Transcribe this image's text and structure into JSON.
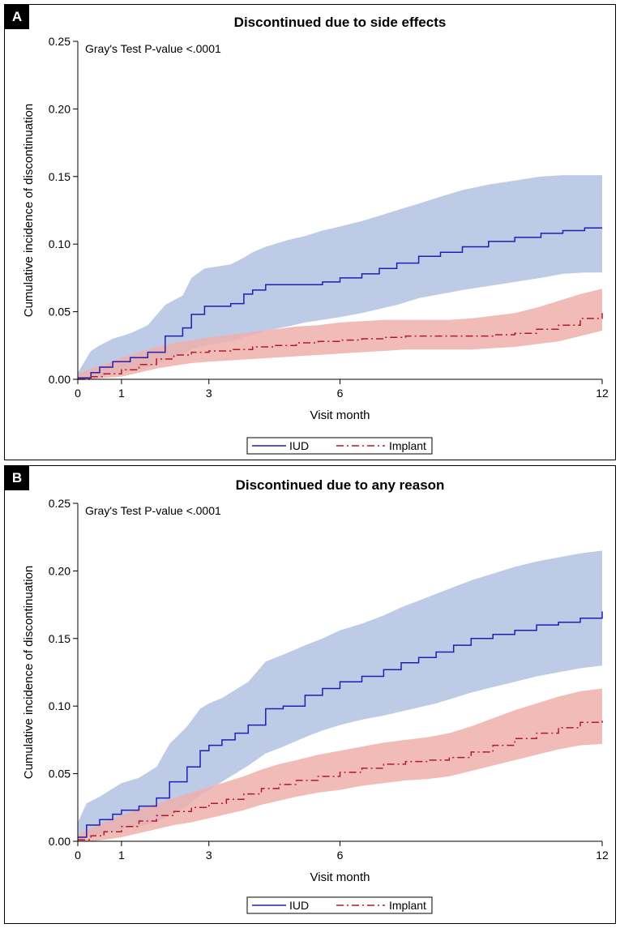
{
  "chart_data": [
    {
      "panel_letter": "A",
      "type": "line",
      "title": "Discontinued due to side effects",
      "xlabel": "Visit month",
      "ylabel": "Cumulative incidence of discontinuation",
      "annotation": "Gray's Test P-value <.0001",
      "xlim": [
        0,
        12
      ],
      "ylim": [
        0,
        0.25
      ],
      "xticks": [
        0,
        1,
        3,
        6,
        12
      ],
      "yticks": [
        0.0,
        0.05,
        0.1,
        0.15,
        0.2,
        0.25
      ],
      "ytick_labels": [
        "0.00",
        "0.05",
        "0.10",
        "0.15",
        "0.20",
        "0.25"
      ],
      "legend_position": "bottom-center",
      "series": [
        {
          "name": "IUD",
          "color": "#1f1fb4",
          "band_color": "#b3c2e3",
          "style": "solid",
          "x": [
            0,
            0.3,
            0.5,
            0.8,
            1.2,
            1.6,
            2.0,
            2.4,
            2.6,
            2.9,
            3.5,
            3.8,
            4.0,
            4.3,
            4.8,
            5.2,
            5.6,
            6.0,
            6.5,
            6.9,
            7.3,
            7.8,
            8.3,
            8.8,
            9.4,
            10.0,
            10.6,
            11.1,
            11.6,
            12.0
          ],
          "y": [
            0.001,
            0.005,
            0.009,
            0.013,
            0.016,
            0.02,
            0.032,
            0.038,
            0.048,
            0.054,
            0.056,
            0.063,
            0.066,
            0.07,
            0.07,
            0.07,
            0.072,
            0.075,
            0.078,
            0.082,
            0.086,
            0.091,
            0.094,
            0.098,
            0.102,
            0.105,
            0.108,
            0.11,
            0.112,
            0.112
          ],
          "lower": [
            0.0,
            0.001,
            0.002,
            0.004,
            0.006,
            0.009,
            0.014,
            0.018,
            0.022,
            0.025,
            0.028,
            0.031,
            0.033,
            0.036,
            0.039,
            0.042,
            0.044,
            0.046,
            0.049,
            0.052,
            0.055,
            0.06,
            0.063,
            0.066,
            0.069,
            0.072,
            0.075,
            0.078,
            0.079,
            0.079
          ],
          "upper": [
            0.005,
            0.021,
            0.025,
            0.03,
            0.034,
            0.04,
            0.055,
            0.062,
            0.075,
            0.082,
            0.085,
            0.09,
            0.094,
            0.098,
            0.103,
            0.106,
            0.11,
            0.113,
            0.117,
            0.121,
            0.125,
            0.13,
            0.135,
            0.14,
            0.144,
            0.147,
            0.15,
            0.151,
            0.151,
            0.151
          ]
        },
        {
          "name": "Implant",
          "color": "#b2182b",
          "band_color": "#eeb0ac",
          "style": "dash",
          "x": [
            0,
            0.3,
            0.6,
            1.0,
            1.4,
            1.8,
            2.2,
            2.6,
            3.0,
            3.5,
            4.0,
            4.5,
            5.0,
            5.5,
            6.0,
            6.5,
            7.0,
            7.5,
            8.0,
            8.5,
            9.0,
            9.5,
            10.0,
            10.5,
            11.0,
            11.5,
            12.0
          ],
          "y": [
            0.0,
            0.002,
            0.004,
            0.007,
            0.011,
            0.015,
            0.018,
            0.02,
            0.021,
            0.022,
            0.024,
            0.025,
            0.027,
            0.028,
            0.029,
            0.03,
            0.031,
            0.032,
            0.032,
            0.032,
            0.032,
            0.033,
            0.034,
            0.037,
            0.04,
            0.045,
            0.049
          ],
          "lower": [
            0.0,
            0.0,
            0.001,
            0.002,
            0.005,
            0.008,
            0.01,
            0.012,
            0.013,
            0.014,
            0.015,
            0.016,
            0.017,
            0.018,
            0.019,
            0.02,
            0.021,
            0.022,
            0.022,
            0.022,
            0.022,
            0.023,
            0.024,
            0.026,
            0.028,
            0.032,
            0.036
          ],
          "upper": [
            0.004,
            0.008,
            0.011,
            0.016,
            0.02,
            0.024,
            0.027,
            0.029,
            0.031,
            0.033,
            0.035,
            0.037,
            0.039,
            0.04,
            0.042,
            0.043,
            0.044,
            0.044,
            0.044,
            0.044,
            0.045,
            0.047,
            0.049,
            0.053,
            0.058,
            0.063,
            0.067
          ]
        }
      ]
    },
    {
      "panel_letter": "B",
      "type": "line",
      "title": "Discontinued due to any reason",
      "xlabel": "Visit month",
      "ylabel": "Cumulative incidence of discontinuation",
      "annotation": "Gray's Test P-value <.0001",
      "xlim": [
        0,
        12
      ],
      "ylim": [
        0,
        0.25
      ],
      "xticks": [
        0,
        1,
        3,
        6,
        12
      ],
      "yticks": [
        0.0,
        0.05,
        0.1,
        0.15,
        0.2,
        0.25
      ],
      "ytick_labels": [
        "0.00",
        "0.05",
        "0.10",
        "0.15",
        "0.20",
        "0.25"
      ],
      "legend_position": "bottom-center",
      "series": [
        {
          "name": "IUD",
          "color": "#1f1fb4",
          "band_color": "#b3c2e3",
          "style": "solid",
          "x": [
            0,
            0.2,
            0.5,
            0.8,
            1.0,
            1.4,
            1.8,
            2.1,
            2.5,
            2.8,
            3.0,
            3.3,
            3.6,
            3.9,
            4.3,
            4.7,
            5.2,
            5.6,
            6.0,
            6.5,
            7.0,
            7.4,
            7.8,
            8.2,
            8.6,
            9.0,
            9.5,
            10.0,
            10.5,
            11.0,
            11.5,
            12.0
          ],
          "y": [
            0.003,
            0.012,
            0.016,
            0.02,
            0.023,
            0.026,
            0.032,
            0.044,
            0.055,
            0.067,
            0.071,
            0.075,
            0.08,
            0.086,
            0.098,
            0.1,
            0.108,
            0.113,
            0.118,
            0.122,
            0.127,
            0.132,
            0.136,
            0.14,
            0.145,
            0.15,
            0.153,
            0.156,
            0.16,
            0.162,
            0.165,
            0.17
          ],
          "lower": [
            0.0,
            0.003,
            0.005,
            0.007,
            0.009,
            0.011,
            0.014,
            0.019,
            0.026,
            0.034,
            0.038,
            0.044,
            0.05,
            0.056,
            0.065,
            0.07,
            0.077,
            0.082,
            0.086,
            0.09,
            0.093,
            0.096,
            0.099,
            0.102,
            0.106,
            0.11,
            0.114,
            0.118,
            0.122,
            0.125,
            0.128,
            0.13
          ],
          "upper": [
            0.014,
            0.028,
            0.033,
            0.039,
            0.043,
            0.047,
            0.055,
            0.072,
            0.085,
            0.098,
            0.102,
            0.106,
            0.112,
            0.118,
            0.133,
            0.138,
            0.145,
            0.15,
            0.156,
            0.161,
            0.167,
            0.173,
            0.178,
            0.183,
            0.188,
            0.193,
            0.198,
            0.203,
            0.207,
            0.21,
            0.213,
            0.215
          ]
        },
        {
          "name": "Implant",
          "color": "#b2182b",
          "band_color": "#eeb0ac",
          "style": "dash",
          "x": [
            0,
            0.3,
            0.6,
            1.0,
            1.4,
            1.8,
            2.2,
            2.6,
            3.0,
            3.4,
            3.8,
            4.2,
            4.6,
            5.0,
            5.5,
            6.0,
            6.5,
            7.0,
            7.5,
            8.0,
            8.5,
            9.0,
            9.5,
            10.0,
            10.5,
            11.0,
            11.5,
            12.0
          ],
          "y": [
            0.001,
            0.004,
            0.007,
            0.011,
            0.015,
            0.019,
            0.022,
            0.025,
            0.028,
            0.031,
            0.035,
            0.039,
            0.042,
            0.045,
            0.048,
            0.051,
            0.054,
            0.057,
            0.059,
            0.06,
            0.062,
            0.066,
            0.071,
            0.076,
            0.08,
            0.084,
            0.088,
            0.09
          ],
          "lower": [
            0.0,
            0.0,
            0.001,
            0.003,
            0.006,
            0.009,
            0.012,
            0.014,
            0.017,
            0.02,
            0.023,
            0.027,
            0.03,
            0.033,
            0.036,
            0.038,
            0.041,
            0.043,
            0.045,
            0.046,
            0.048,
            0.052,
            0.056,
            0.06,
            0.064,
            0.068,
            0.071,
            0.072
          ],
          "upper": [
            0.005,
            0.01,
            0.014,
            0.019,
            0.024,
            0.028,
            0.032,
            0.036,
            0.04,
            0.044,
            0.048,
            0.053,
            0.057,
            0.06,
            0.064,
            0.067,
            0.07,
            0.073,
            0.075,
            0.077,
            0.08,
            0.085,
            0.091,
            0.097,
            0.102,
            0.107,
            0.111,
            0.113
          ]
        }
      ]
    }
  ]
}
